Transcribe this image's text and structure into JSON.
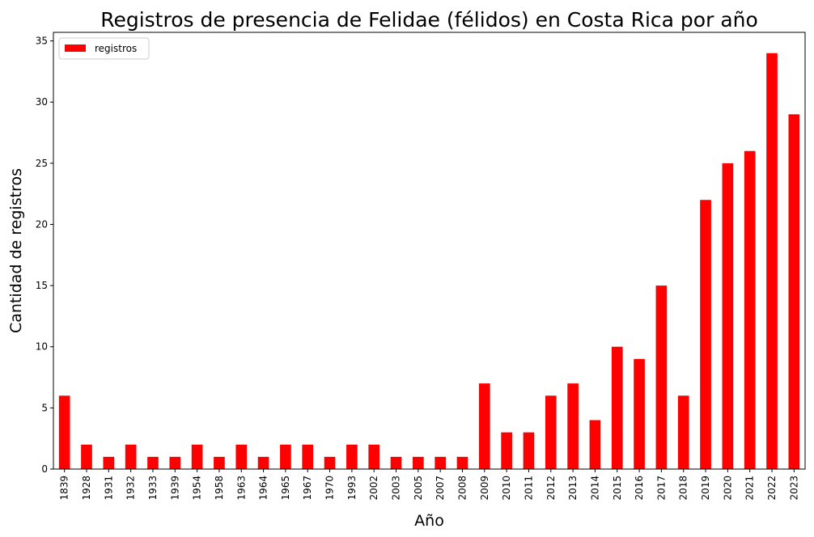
{
  "chart_data": {
    "type": "bar",
    "title": "Registros de presencia de Felidae (félidos) en Costa Rica por año",
    "xlabel": "Año",
    "ylabel": "Cantidad de registros",
    "categories": [
      "1839",
      "1928",
      "1931",
      "1932",
      "1933",
      "1939",
      "1954",
      "1958",
      "1963",
      "1964",
      "1965",
      "1967",
      "1970",
      "1993",
      "2002",
      "2003",
      "2005",
      "2007",
      "2008",
      "2009",
      "2010",
      "2011",
      "2012",
      "2013",
      "2014",
      "2015",
      "2016",
      "2017",
      "2018",
      "2019",
      "2020",
      "2021",
      "2022",
      "2023"
    ],
    "series": [
      {
        "name": "registros",
        "color": "#ff0000",
        "values": [
          6,
          2,
          1,
          2,
          1,
          1,
          2,
          1,
          2,
          1,
          2,
          2,
          1,
          2,
          2,
          1,
          1,
          1,
          1,
          7,
          3,
          3,
          6,
          7,
          4,
          10,
          9,
          15,
          6,
          22,
          25,
          26,
          34,
          29
        ]
      }
    ],
    "ylim": [
      0,
      35.7
    ],
    "yticks": [
      0,
      5,
      10,
      15,
      20,
      25,
      30,
      35
    ],
    "grid": false,
    "legend": "top-left"
  }
}
